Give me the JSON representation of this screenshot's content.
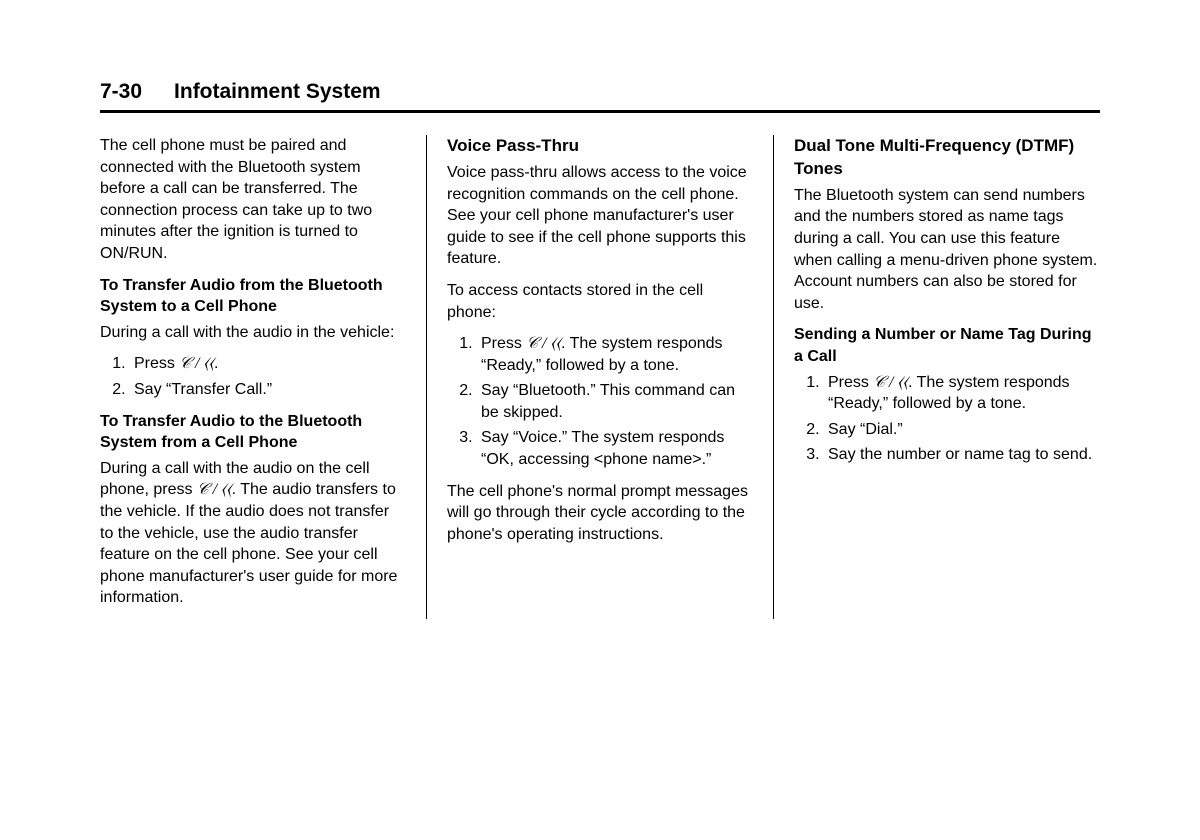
{
  "header": {
    "page_number": "7-30",
    "chapter_title": "Infotainment System"
  },
  "icons": {
    "phone_voice": "𝒞 / ⟨⟨"
  },
  "col1": {
    "intro": "The cell phone must be paired and connected with the Bluetooth system before a call can be transferred. The connection process can take up to two minutes after the ignition is turned to ON/RUN.",
    "heading_a": "To Transfer Audio from the Bluetooth System to a Cell Phone",
    "para_a": "During a call with the audio in the vehicle:",
    "step_a1_pre": "Press ",
    "step_a1_post": ".",
    "step_a2": "Say “Transfer Call.”",
    "heading_b": "To Transfer Audio to the Bluetooth System from a Cell Phone",
    "para_b_pre": "During a call with the audio on the cell phone, press ",
    "para_b_post": ". The audio transfers to the vehicle. If the audio does not transfer to the vehicle, use the audio transfer feature on the cell phone. See your cell phone manufacturer's user guide for more information."
  },
  "col2": {
    "heading": "Voice Pass-Thru",
    "para1": "Voice pass-thru allows access to the voice recognition commands on the cell phone. See your cell phone manufacturer's user guide to see if the cell phone supports this feature.",
    "para2": "To access contacts stored in the cell phone:",
    "step1_pre": "Press ",
    "step1_post": ". The system responds “Ready,” followed by a tone.",
    "step2": "Say “Bluetooth.” This command can be skipped.",
    "step3": "Say “Voice.” The system responds “OK, accessing <phone name>.”",
    "para3": "The cell phone's normal prompt messages will go through their cycle according to the phone's operating instructions."
  },
  "col3": {
    "heading": "Dual Tone Multi-Frequency (DTMF) Tones",
    "para1": "The Bluetooth system can send numbers and the numbers stored as name tags during a call. You can use this feature when calling a menu-driven phone system. Account numbers can also be stored for use.",
    "sub_heading": "Sending a Number or Name Tag During a Call",
    "step1_pre": "Press ",
    "step1_post": ". The system responds “Ready,” followed by a tone.",
    "step2": "Say “Dial.”",
    "step3": "Say the number or name tag to send."
  }
}
